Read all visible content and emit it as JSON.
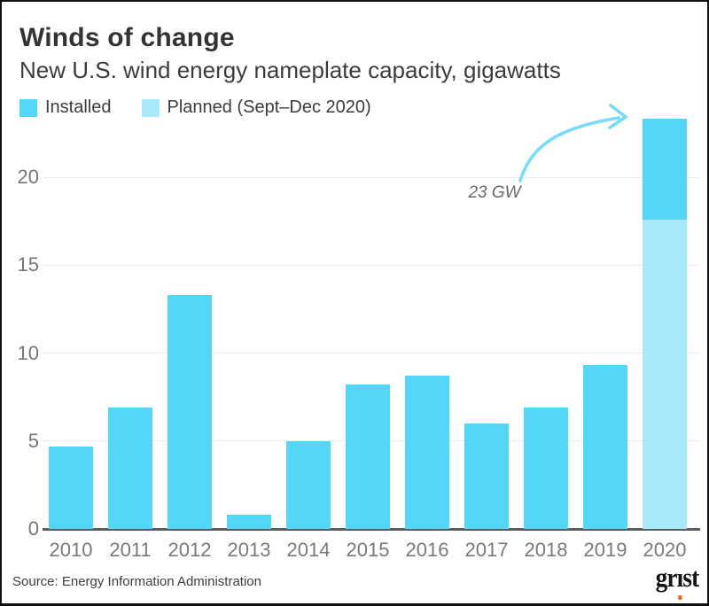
{
  "header": {
    "title": "Winds of change",
    "subtitle": "New U.S. wind energy nameplate capacity, gigawatts"
  },
  "legend": [
    {
      "key": "installed",
      "label": "Installed",
      "color": "#53d7f8"
    },
    {
      "key": "planned",
      "label": "Planned (Sept–Dec 2020)",
      "color": "#a5e9fb"
    }
  ],
  "annotation": {
    "text": "23 GW"
  },
  "footer": {
    "source": "Source: Energy Information Administration",
    "logo_text": "grist",
    "logo_dot_color": "#f26d21"
  },
  "colors": {
    "installed": "#53d7f8",
    "planned": "#a5e9fb",
    "arrow": "#76dcf8",
    "gridline": "#ececec",
    "axis_line": "#5c5c5c",
    "axis_text": "#767676",
    "frame_border": "#111111"
  },
  "chart_data": {
    "type": "bar",
    "title": "Winds of change",
    "subtitle": "New U.S. wind energy nameplate capacity, gigawatts",
    "xlabel": "",
    "ylabel": "gigawatts",
    "categories": [
      "2010",
      "2011",
      "2012",
      "2013",
      "2014",
      "2015",
      "2016",
      "2017",
      "2018",
      "2019",
      "2020"
    ],
    "series": [
      {
        "name": "Installed",
        "color_key": "installed",
        "stack_position": "top",
        "values": [
          4.7,
          6.9,
          13.3,
          0.8,
          5.0,
          8.2,
          8.7,
          6.0,
          6.9,
          9.3,
          5.7
        ]
      },
      {
        "name": "Planned (Sept–Dec 2020)",
        "color_key": "planned",
        "stack_position": "bottom",
        "values": [
          0,
          0,
          0,
          0,
          0,
          0,
          0,
          0,
          0,
          0,
          17.6
        ]
      }
    ],
    "stacked": true,
    "total_2020_gw": 23,
    "yticks": [
      0,
      5,
      10,
      15,
      20
    ],
    "ylim": [
      0,
      24
    ],
    "grid": "horizontal",
    "legend_position": "top-left",
    "annotations": [
      {
        "text": "23 GW",
        "target_category": "2020",
        "arrow": true
      }
    ]
  }
}
